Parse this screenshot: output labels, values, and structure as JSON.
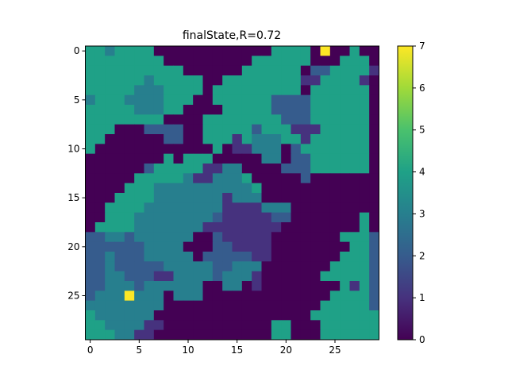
{
  "figure": {
    "title": "finalState,R=0.72"
  },
  "chart_data": {
    "type": "heatmap",
    "title": "finalState,R=0.72",
    "colormap": "viridis",
    "vmin": 0,
    "vmax": 7,
    "x_ticks": [
      0,
      5,
      10,
      15,
      20,
      25
    ],
    "y_ticks": [
      0,
      5,
      10,
      15,
      20,
      25
    ],
    "colorbar_ticks": [
      0,
      1,
      2,
      3,
      4,
      5,
      6,
      7
    ],
    "rows": 30,
    "cols": 30,
    "z": [
      [
        4,
        4,
        3,
        4,
        4,
        4,
        4,
        0,
        0,
        0,
        0,
        0,
        0,
        0,
        0,
        0,
        0,
        0,
        0,
        4,
        4,
        4,
        4,
        0,
        7,
        0,
        0,
        4,
        0,
        0
      ],
      [
        4,
        4,
        4,
        4,
        4,
        4,
        4,
        4,
        0,
        0,
        0,
        0,
        0,
        0,
        0,
        0,
        0,
        4,
        4,
        4,
        4,
        4,
        4,
        0,
        0,
        0,
        4,
        4,
        4,
        0
      ],
      [
        4,
        4,
        4,
        4,
        4,
        4,
        4,
        4,
        4,
        4,
        0,
        0,
        0,
        0,
        0,
        0,
        4,
        4,
        4,
        4,
        4,
        4,
        0,
        2,
        2,
        4,
        4,
        4,
        4,
        1
      ],
      [
        4,
        4,
        4,
        4,
        4,
        4,
        3,
        4,
        4,
        4,
        4,
        4,
        0,
        0,
        4,
        4,
        4,
        4,
        4,
        4,
        4,
        4,
        1,
        1,
        4,
        4,
        4,
        4,
        1,
        0
      ],
      [
        4,
        4,
        4,
        4,
        4,
        3,
        3,
        3,
        4,
        4,
        4,
        4,
        0,
        4,
        4,
        4,
        4,
        4,
        4,
        4,
        4,
        4,
        0,
        4,
        4,
        4,
        4,
        4,
        4,
        0
      ],
      [
        3,
        4,
        4,
        4,
        3,
        3,
        3,
        3,
        4,
        4,
        4,
        0,
        0,
        4,
        4,
        4,
        4,
        4,
        4,
        2,
        2,
        2,
        2,
        4,
        4,
        4,
        4,
        4,
        4,
        0
      ],
      [
        4,
        4,
        4,
        4,
        4,
        3,
        3,
        3,
        4,
        4,
        0,
        0,
        0,
        0,
        4,
        4,
        4,
        4,
        4,
        2,
        2,
        2,
        2,
        4,
        4,
        4,
        4,
        4,
        4,
        0
      ],
      [
        4,
        4,
        4,
        4,
        4,
        4,
        4,
        4,
        0,
        0,
        0,
        0,
        4,
        4,
        4,
        4,
        4,
        4,
        4,
        4,
        2,
        2,
        2,
        4,
        4,
        4,
        4,
        4,
        4,
        0
      ],
      [
        4,
        4,
        4,
        0,
        0,
        0,
        2,
        2,
        2,
        2,
        0,
        0,
        4,
        4,
        4,
        4,
        4,
        2,
        4,
        4,
        4,
        1,
        1,
        1,
        4,
        4,
        4,
        4,
        4,
        0
      ],
      [
        4,
        4,
        0,
        0,
        0,
        0,
        0,
        0,
        2,
        2,
        0,
        0,
        4,
        4,
        4,
        1,
        4,
        3,
        3,
        3,
        4,
        4,
        1,
        4,
        4,
        4,
        4,
        4,
        4,
        0
      ],
      [
        4,
        0,
        0,
        0,
        0,
        0,
        0,
        0,
        0,
        0,
        0,
        0,
        0,
        4,
        0,
        1,
        1,
        3,
        3,
        3,
        0,
        2,
        4,
        4,
        4,
        4,
        4,
        4,
        4,
        0
      ],
      [
        0,
        0,
        0,
        0,
        0,
        0,
        0,
        0,
        4,
        0,
        4,
        4,
        4,
        0,
        0,
        0,
        0,
        0,
        3,
        3,
        0,
        2,
        2,
        4,
        4,
        4,
        4,
        4,
        4,
        0
      ],
      [
        0,
        0,
        0,
        0,
        0,
        0,
        2,
        4,
        4,
        4,
        4,
        4,
        1,
        1,
        3,
        3,
        0,
        0,
        0,
        0,
        2,
        2,
        2,
        4,
        4,
        4,
        4,
        4,
        4,
        0
      ],
      [
        0,
        0,
        0,
        0,
        0,
        4,
        4,
        4,
        4,
        4,
        3,
        1,
        1,
        3,
        3,
        3,
        4,
        0,
        0,
        0,
        0,
        0,
        2,
        0,
        0,
        0,
        0,
        0,
        0,
        0
      ],
      [
        0,
        0,
        0,
        0,
        4,
        4,
        4,
        3,
        3,
        3,
        3,
        3,
        3,
        3,
        3,
        3,
        3,
        4,
        0,
        0,
        0,
        0,
        0,
        0,
        0,
        0,
        0,
        0,
        0,
        0
      ],
      [
        0,
        0,
        0,
        4,
        4,
        4,
        4,
        3,
        3,
        3,
        3,
        3,
        3,
        3,
        1,
        3,
        3,
        3,
        0,
        0,
        0,
        0,
        0,
        0,
        0,
        0,
        0,
        0,
        0,
        0
      ],
      [
        0,
        0,
        4,
        4,
        4,
        4,
        3,
        3,
        3,
        3,
        3,
        3,
        3,
        3,
        1,
        1,
        1,
        1,
        3,
        3,
        3,
        0,
        0,
        0,
        0,
        0,
        0,
        0,
        0,
        0
      ],
      [
        0,
        0,
        4,
        4,
        4,
        3,
        3,
        3,
        3,
        3,
        3,
        3,
        3,
        2,
        1,
        1,
        1,
        1,
        1,
        2,
        2,
        0,
        0,
        0,
        0,
        0,
        0,
        0,
        4,
        0
      ],
      [
        0,
        4,
        4,
        4,
        4,
        3,
        3,
        3,
        3,
        3,
        3,
        3,
        1,
        1,
        1,
        1,
        1,
        1,
        1,
        1,
        0,
        0,
        0,
        0,
        0,
        0,
        0,
        0,
        4,
        0
      ],
      [
        2,
        2,
        3,
        3,
        2,
        3,
        3,
        3,
        3,
        3,
        3,
        0,
        0,
        2,
        1,
        1,
        1,
        1,
        1,
        0,
        0,
        0,
        0,
        0,
        0,
        0,
        4,
        4,
        4,
        2
      ],
      [
        2,
        2,
        2,
        2,
        2,
        2,
        3,
        3,
        3,
        3,
        0,
        0,
        0,
        2,
        2,
        1,
        1,
        1,
        1,
        0,
        0,
        0,
        0,
        0,
        0,
        0,
        0,
        4,
        4,
        2
      ],
      [
        2,
        2,
        3,
        2,
        2,
        2,
        3,
        3,
        3,
        3,
        3,
        0,
        2,
        2,
        2,
        2,
        2,
        1,
        1,
        0,
        0,
        0,
        0,
        0,
        0,
        0,
        4,
        4,
        4,
        2
      ],
      [
        2,
        2,
        3,
        2,
        2,
        2,
        2,
        2,
        3,
        3,
        3,
        3,
        3,
        2,
        2,
        3,
        3,
        3,
        0,
        0,
        0,
        0,
        0,
        0,
        0,
        4,
        4,
        4,
        4,
        2
      ],
      [
        2,
        2,
        3,
        3,
        2,
        2,
        2,
        1,
        1,
        3,
        3,
        3,
        3,
        2,
        3,
        3,
        3,
        1,
        0,
        0,
        0,
        0,
        0,
        0,
        4,
        4,
        4,
        4,
        4,
        2
      ],
      [
        2,
        2,
        3,
        3,
        3,
        2,
        3,
        3,
        3,
        3,
        3,
        3,
        0,
        0,
        3,
        3,
        0,
        1,
        0,
        0,
        0,
        0,
        0,
        0,
        0,
        0,
        4,
        1,
        4,
        2
      ],
      [
        2,
        3,
        3,
        3,
        7,
        3,
        3,
        3,
        0,
        3,
        3,
        3,
        0,
        0,
        0,
        0,
        0,
        0,
        0,
        0,
        0,
        0,
        0,
        0,
        0,
        4,
        4,
        4,
        4,
        2
      ],
      [
        3,
        3,
        3,
        3,
        3,
        3,
        3,
        3,
        0,
        0,
        0,
        0,
        0,
        0,
        0,
        0,
        0,
        0,
        0,
        0,
        0,
        0,
        0,
        0,
        4,
        4,
        4,
        4,
        4,
        2
      ],
      [
        4,
        3,
        3,
        3,
        3,
        3,
        3,
        0,
        0,
        0,
        0,
        0,
        0,
        0,
        0,
        0,
        0,
        0,
        0,
        0,
        0,
        0,
        0,
        4,
        4,
        4,
        4,
        4,
        4,
        4
      ],
      [
        4,
        4,
        3,
        3,
        3,
        3,
        1,
        1,
        0,
        0,
        0,
        0,
        0,
        0,
        0,
        0,
        0,
        0,
        0,
        4,
        4,
        0,
        0,
        0,
        4,
        4,
        4,
        4,
        4,
        4
      ],
      [
        4,
        4,
        4,
        3,
        3,
        1,
        1,
        0,
        0,
        0,
        0,
        0,
        0,
        0,
        0,
        0,
        0,
        0,
        0,
        4,
        4,
        0,
        0,
        0,
        4,
        4,
        4,
        4,
        4,
        4
      ]
    ]
  }
}
